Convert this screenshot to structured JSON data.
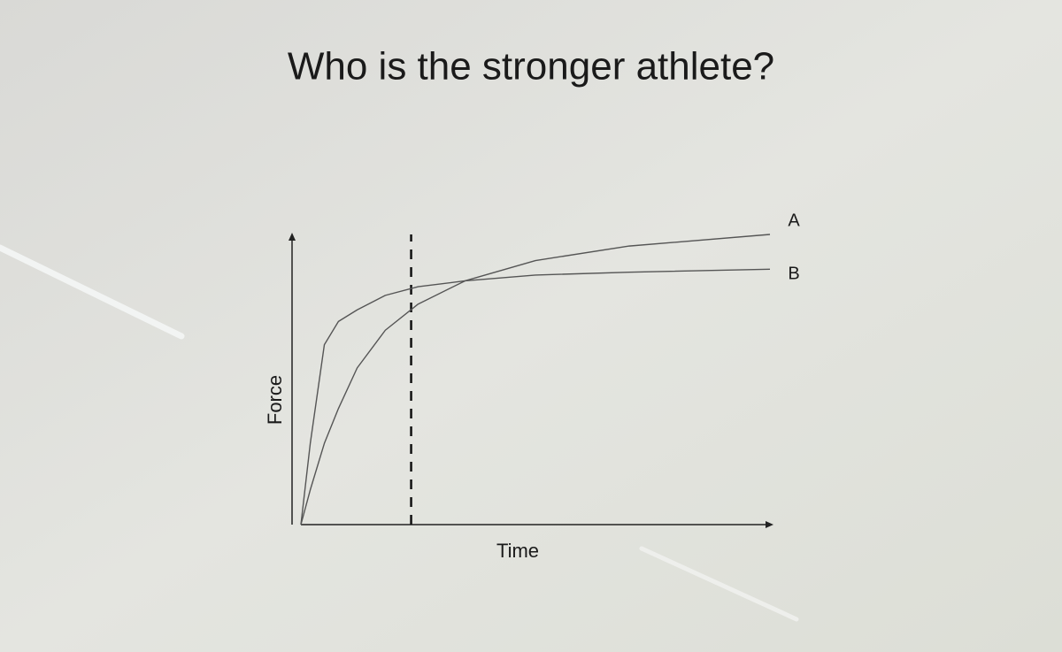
{
  "chart_data": {
    "type": "line",
    "title": "Who is the stronger athlete?",
    "x_label": "Time",
    "y_label": "Force",
    "x": [
      0,
      2,
      5,
      8,
      12,
      18,
      25,
      35,
      50,
      70,
      100
    ],
    "series": [
      {
        "name": "A",
        "color": "#555555",
        "values": [
          0,
          12,
          28,
          40,
          54,
          67,
          76,
          84,
          91,
          96,
          100
        ]
      },
      {
        "name": "B",
        "color": "#555555",
        "values": [
          0,
          28,
          62,
          70,
          74,
          79,
          82,
          84,
          86,
          87,
          88
        ]
      }
    ],
    "xlim": [
      0,
      100
    ],
    "ylim": [
      0,
      100
    ],
    "vline": 23.5
  }
}
